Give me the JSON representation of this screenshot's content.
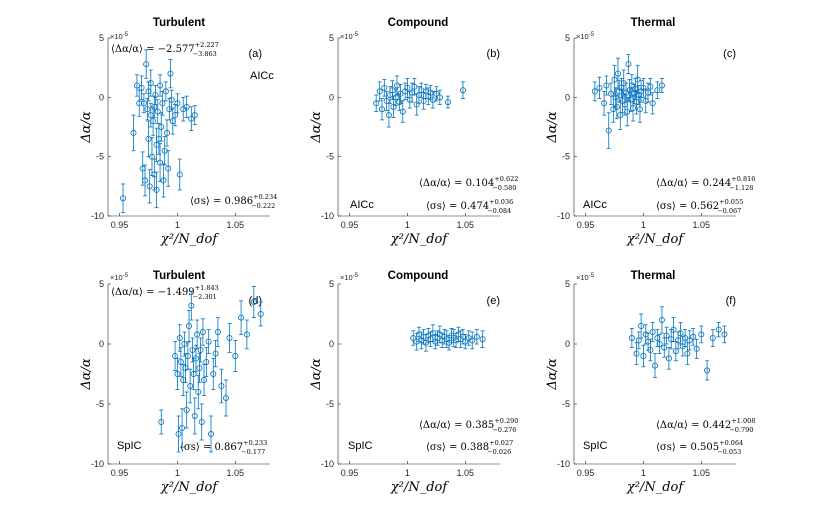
{
  "figure": {
    "x_axis_title": "χ²/N_dof",
    "y_axis_title": "Δα/α",
    "exponent_label": "×10",
    "exponent_power": "-5",
    "series_color": "#0072BD"
  },
  "chart_data": [
    {
      "id": "a",
      "type": "scatter",
      "title": "Turbulent",
      "letter": "(a)",
      "criterion": "AICc",
      "xlim": [
        0.94,
        1.08
      ],
      "ylim": [
        -10,
        5
      ],
      "xticks": [
        0.95,
        1,
        1.05
      ],
      "xticklabels": [
        "0.95",
        "1",
        "1.05"
      ],
      "yticks": [
        5,
        0,
        -5,
        -10
      ],
      "yticklabels": [
        "5",
        "0",
        "-5",
        "-10"
      ],
      "mean_label": {
        "lhs": "⟨Δα/α⟩",
        "value": "−2.577",
        "sup": "+2.227",
        "sub": "−3.863"
      },
      "sigma_label": {
        "lhs": "⟨σs⟩",
        "value": "0.986",
        "sup": "+0.234",
        "sub": "−0.222"
      },
      "x": [
        0.953,
        0.962,
        0.965,
        0.967,
        0.969,
        0.97,
        0.971,
        0.972,
        0.973,
        0.974,
        0.975,
        0.975,
        0.976,
        0.977,
        0.977,
        0.978,
        0.979,
        0.98,
        0.98,
        0.981,
        0.982,
        0.982,
        0.983,
        0.984,
        0.985,
        0.985,
        0.986,
        0.987,
        0.988,
        0.989,
        0.99,
        0.991,
        0.992,
        0.993,
        0.994,
        0.995,
        0.996,
        0.998,
        1.0,
        1.002,
        1.005,
        1.008,
        1.012,
        1.015
      ],
      "y": [
        -8.5,
        -3.0,
        1.0,
        -0.5,
        0.8,
        -6.0,
        -0.5,
        -7.0,
        2.8,
        -1.0,
        -3.5,
        0.5,
        -7.5,
        -1.5,
        1.2,
        -5.0,
        -2.0,
        -0.8,
        -6.5,
        0.2,
        -4.0,
        -7.8,
        -1.2,
        -3.5,
        1.0,
        -5.5,
        -2.5,
        -0.5,
        -7.0,
        -4.5,
        0.5,
        -3.0,
        -6.0,
        -1.0,
        2.0,
        -0.2,
        -2.0,
        -1.5,
        -0.5,
        -6.5,
        -1.0,
        -0.8,
        -1.8,
        -1.5
      ],
      "err": [
        1.2,
        1.5,
        0.9,
        1.1,
        1.0,
        1.4,
        0.8,
        1.3,
        1.2,
        0.9,
        1.5,
        0.8,
        1.4,
        1.0,
        1.1,
        1.6,
        1.2,
        0.9,
        1.3,
        0.8,
        1.4,
        1.5,
        1.0,
        1.3,
        0.9,
        1.6,
        1.2,
        1.0,
        1.4,
        1.2,
        0.8,
        1.1,
        1.5,
        0.9,
        1.2,
        0.8,
        1.1,
        0.9,
        0.8,
        1.3,
        1.0,
        0.9,
        1.0,
        0.8
      ]
    },
    {
      "id": "b",
      "type": "scatter",
      "title": "Compound",
      "letter": "(b)",
      "criterion": "AICc",
      "xlim": [
        0.94,
        1.08
      ],
      "ylim": [
        -10,
        5
      ],
      "xticks": [
        0.95,
        1,
        1.05
      ],
      "xticklabels": [
        "0.95",
        "1",
        "1.05"
      ],
      "yticks": [
        5,
        0,
        -5,
        -10
      ],
      "yticklabels": [
        "5",
        "0",
        "-5",
        "-10"
      ],
      "mean_label": {
        "lhs": "⟨Δα/α⟩",
        "value": "0.104",
        "sup": "+0.622",
        "sub": "−0.580"
      },
      "sigma_label": {
        "lhs": "⟨σs⟩",
        "value": "0.474",
        "sup": "+0.036",
        "sub": "−0.084"
      },
      "x": [
        0.973,
        0.976,
        0.978,
        0.98,
        0.982,
        0.984,
        0.985,
        0.987,
        0.988,
        0.99,
        0.991,
        0.993,
        0.994,
        0.996,
        0.998,
        1.0,
        1.002,
        1.004,
        1.006,
        1.008,
        1.01,
        1.012,
        1.014,
        1.016,
        1.018,
        1.02,
        1.022,
        1.025,
        1.028,
        1.035,
        1.048
      ],
      "y": [
        -0.5,
        0.5,
        -1.0,
        0.8,
        -0.3,
        -1.5,
        0.2,
        0.6,
        -0.8,
        0.0,
        1.0,
        -0.4,
        0.3,
        -1.2,
        0.5,
        0.8,
        -0.2,
        0.4,
        0.9,
        -0.6,
        0.2,
        0.6,
        -0.3,
        0.5,
        0.1,
        0.4,
        -0.2,
        0.3,
        0.0,
        -0.4,
        0.6
      ],
      "err": [
        0.7,
        0.8,
        0.9,
        0.7,
        0.8,
        1.0,
        0.7,
        0.8,
        0.9,
        0.7,
        0.8,
        0.7,
        0.8,
        0.9,
        0.7,
        0.8,
        0.7,
        0.8,
        0.7,
        0.9,
        0.7,
        0.6,
        0.7,
        0.6,
        0.7,
        0.6,
        0.7,
        0.6,
        0.6,
        0.5,
        0.7
      ]
    },
    {
      "id": "c",
      "type": "scatter",
      "title": "Thermal",
      "letter": "(c)",
      "criterion": "AICc",
      "xlim": [
        0.94,
        1.08
      ],
      "ylim": [
        -10,
        5
      ],
      "xticks": [
        0.95,
        1,
        1.05
      ],
      "xticklabels": [
        "0.95",
        "1",
        "1.05"
      ],
      "yticks": [
        5,
        0,
        -5,
        -10
      ],
      "yticklabels": [
        "5",
        "0",
        "-5",
        "-10"
      ],
      "mean_label": {
        "lhs": "⟨Δα/α⟩",
        "value": "0.244",
        "sup": "+0.816",
        "sub": "−1.128"
      },
      "sigma_label": {
        "lhs": "⟨σs⟩",
        "value": "0.562",
        "sup": "+0.055",
        "sub": "−0.067"
      },
      "x": [
        0.958,
        0.962,
        0.966,
        0.968,
        0.97,
        0.972,
        0.974,
        0.975,
        0.976,
        0.977,
        0.978,
        0.979,
        0.98,
        0.981,
        0.982,
        0.983,
        0.984,
        0.985,
        0.986,
        0.987,
        0.988,
        0.989,
        0.99,
        0.991,
        0.992,
        0.993,
        0.994,
        0.995,
        0.996,
        0.997,
        0.998,
        1.0,
        1.002,
        1.004,
        1.006,
        1.008,
        1.012,
        1.016
      ],
      "y": [
        0.5,
        0.8,
        -0.5,
        1.0,
        -2.8,
        0.3,
        -1.0,
        1.5,
        0.0,
        -0.8,
        2.0,
        0.5,
        -1.5,
        0.8,
        -0.3,
        1.2,
        -0.6,
        0.4,
        -1.2,
        2.8,
        0.6,
        -0.2,
        1.0,
        -0.9,
        0.3,
        0.7,
        -0.4,
        1.5,
        0.2,
        -1.0,
        0.5,
        0.8,
        -0.3,
        0.4,
        0.9,
        -0.5,
        0.6,
        1.0
      ],
      "err": [
        0.8,
        0.9,
        1.0,
        0.8,
        1.5,
        0.9,
        1.1,
        1.2,
        0.8,
        1.0,
        1.3,
        0.9,
        1.2,
        0.8,
        1.0,
        1.1,
        0.9,
        0.8,
        1.2,
        0.8,
        0.9,
        1.0,
        0.9,
        1.1,
        0.8,
        0.9,
        1.0,
        1.2,
        0.8,
        1.1,
        0.9,
        0.8,
        1.0,
        0.8,
        0.7,
        0.9,
        0.7,
        0.6
      ]
    },
    {
      "id": "d",
      "type": "scatter",
      "title": "Turbulent",
      "letter": "(d)",
      "criterion": "SpIC",
      "xlim": [
        0.94,
        1.08
      ],
      "ylim": [
        -10,
        5
      ],
      "xticks": [
        0.95,
        1,
        1.05
      ],
      "xticklabels": [
        "0.95",
        "1",
        "1.05"
      ],
      "yticks": [
        5,
        0,
        -5,
        -10
      ],
      "yticklabels": [
        "5",
        "0",
        "-5",
        "-10"
      ],
      "mean_label": {
        "lhs": "⟨Δα/α⟩",
        "value": "−1.499",
        "sup": "+1.843",
        "sub": "−2.301"
      },
      "sigma_label": {
        "lhs": "⟨σs⟩",
        "value": "0.867",
        "sup": "+0.233",
        "sub": "−0.177"
      },
      "x": [
        0.986,
        0.998,
        1.0,
        1.001,
        1.002,
        1.003,
        1.004,
        1.005,
        1.006,
        1.007,
        1.008,
        1.009,
        1.01,
        1.011,
        1.012,
        1.013,
        1.014,
        1.015,
        1.016,
        1.017,
        1.018,
        1.019,
        1.02,
        1.021,
        1.022,
        1.023,
        1.025,
        1.027,
        1.029,
        1.031,
        1.033,
        1.035,
        1.038,
        1.042,
        1.045,
        1.05,
        1.055,
        1.06,
        1.066,
        1.072
      ],
      "y": [
        -6.5,
        -1.0,
        -2.5,
        -7.5,
        0.5,
        -1.5,
        -7.0,
        -3.0,
        0.0,
        -2.0,
        -5.5,
        -1.0,
        1.5,
        -3.5,
        3.2,
        -0.5,
        -2.5,
        -6.0,
        -1.2,
        0.8,
        -4.0,
        -2.0,
        -0.5,
        -6.5,
        1.0,
        -3.0,
        -1.5,
        0.2,
        -7.5,
        -2.5,
        -0.8,
        1.0,
        -3.5,
        -4.5,
        0.5,
        -1.0,
        2.2,
        0.8,
        3.5,
        2.5
      ],
      "err": [
        1.0,
        1.2,
        1.3,
        1.5,
        1.1,
        1.2,
        1.6,
        1.3,
        1.0,
        1.2,
        1.5,
        1.1,
        1.3,
        1.4,
        1.2,
        1.0,
        1.3,
        1.5,
        1.1,
        1.2,
        1.4,
        1.2,
        1.0,
        1.5,
        1.1,
        1.3,
        1.2,
        1.0,
        1.5,
        1.3,
        1.1,
        1.2,
        1.4,
        1.5,
        1.2,
        1.3,
        1.4,
        1.2,
        1.3,
        1.0
      ]
    },
    {
      "id": "e",
      "type": "scatter",
      "title": "Compound",
      "letter": "(e)",
      "criterion": "SpIC",
      "xlim": [
        0.94,
        1.08
      ],
      "ylim": [
        -10,
        5
      ],
      "xticks": [
        0.95,
        1,
        1.05
      ],
      "xticklabels": [
        "0.95",
        "1",
        "1.05"
      ],
      "yticks": [
        5,
        0,
        -5,
        -10
      ],
      "yticklabels": [
        "5",
        "0",
        "-5",
        "-10"
      ],
      "mean_label": {
        "lhs": "⟨Δα/α⟩",
        "value": "0.385",
        "sup": "+0.290",
        "sub": "−0.276"
      },
      "sigma_label": {
        "lhs": "⟨σs⟩",
        "value": "0.388",
        "sup": "+0.027",
        "sub": "−0.026"
      },
      "x": [
        1.005,
        1.008,
        1.01,
        1.012,
        1.014,
        1.016,
        1.018,
        1.02,
        1.022,
        1.024,
        1.026,
        1.028,
        1.03,
        1.032,
        1.034,
        1.036,
        1.038,
        1.04,
        1.042,
        1.044,
        1.046,
        1.048,
        1.05,
        1.053,
        1.056,
        1.06,
        1.065
      ],
      "y": [
        0.5,
        0.2,
        0.8,
        0.3,
        0.6,
        0.1,
        0.7,
        0.4,
        0.9,
        0.2,
        0.5,
        0.8,
        0.3,
        0.6,
        0.4,
        0.1,
        0.7,
        0.5,
        0.3,
        0.8,
        0.4,
        0.6,
        0.2,
        0.5,
        0.3,
        0.6,
        0.4
      ],
      "err": [
        0.6,
        0.7,
        0.6,
        0.7,
        0.6,
        0.7,
        0.6,
        0.6,
        0.7,
        0.6,
        0.6,
        0.7,
        0.6,
        0.6,
        0.7,
        0.6,
        0.6,
        0.7,
        0.6,
        0.6,
        0.7,
        0.6,
        0.6,
        0.6,
        0.7,
        0.6,
        0.7
      ]
    },
    {
      "id": "f",
      "type": "scatter",
      "title": "Thermal",
      "letter": "(f)",
      "criterion": "SpIC",
      "xlim": [
        0.94,
        1.08
      ],
      "ylim": [
        -10,
        5
      ],
      "xticks": [
        0.95,
        1,
        1.05
      ],
      "xticklabels": [
        "0.95",
        "1",
        "1.05"
      ],
      "yticks": [
        5,
        0,
        -5,
        -10
      ],
      "yticklabels": [
        "5",
        "0",
        "-5",
        "-10"
      ],
      "mean_label": {
        "lhs": "⟨Δα/α⟩",
        "value": "0.442",
        "sup": "+1.008",
        "sub": "−0.790"
      },
      "sigma_label": {
        "lhs": "⟨σs⟩",
        "value": "0.505",
        "sup": "+0.064",
        "sub": "−0.053"
      },
      "x": [
        0.99,
        0.994,
        0.996,
        0.998,
        1.0,
        1.002,
        1.004,
        1.006,
        1.008,
        1.01,
        1.012,
        1.014,
        1.016,
        1.018,
        1.02,
        1.022,
        1.024,
        1.026,
        1.028,
        1.03,
        1.032,
        1.034,
        1.036,
        1.038,
        1.04,
        1.043,
        1.046,
        1.05,
        1.055,
        1.06,
        1.065,
        1.07
      ],
      "y": [
        0.5,
        -0.8,
        0.3,
        1.5,
        -1.0,
        0.8,
        0.2,
        -0.5,
        1.0,
        -1.8,
        0.5,
        0.0,
        2.0,
        -0.3,
        0.7,
        -1.2,
        0.4,
        1.2,
        -0.6,
        0.3,
        0.9,
        -0.2,
        0.5,
        -0.8,
        0.3,
        0.6,
        -0.4,
        0.8,
        -2.2,
        0.5,
        1.2,
        0.8
      ],
      "err": [
        0.8,
        0.9,
        0.7,
        1.0,
        0.9,
        0.8,
        0.7,
        0.9,
        0.8,
        1.0,
        0.7,
        0.8,
        1.1,
        0.8,
        0.7,
        0.9,
        0.8,
        1.0,
        0.8,
        0.7,
        0.9,
        0.8,
        0.7,
        0.9,
        0.8,
        0.7,
        0.8,
        0.7,
        0.8,
        0.7,
        0.6,
        0.7
      ]
    }
  ]
}
